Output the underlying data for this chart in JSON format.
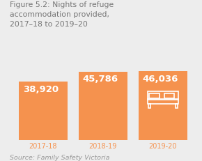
{
  "title": "Figure 5.2: Nights of refuge\naccommodation provided,\n2017–18 to 2019–20",
  "source": "Source: Family Safety Victoria",
  "categories": [
    "2017-18",
    "2018-19",
    "2019-20"
  ],
  "values": [
    38920,
    45786,
    46036
  ],
  "labels": [
    "38,920",
    "45,786",
    "46,036"
  ],
  "bar_color": "#F5924E",
  "background_color": "#EDEDED",
  "title_color": "#777777",
  "label_color": "#FFFFFF",
  "xlabel_color": "#F5924E",
  "source_color": "#999999",
  "bar_width": 0.82,
  "title_fontsize": 7.8,
  "label_fontsize": 9.5,
  "xlabel_fontsize": 7.0,
  "source_fontsize": 6.8
}
